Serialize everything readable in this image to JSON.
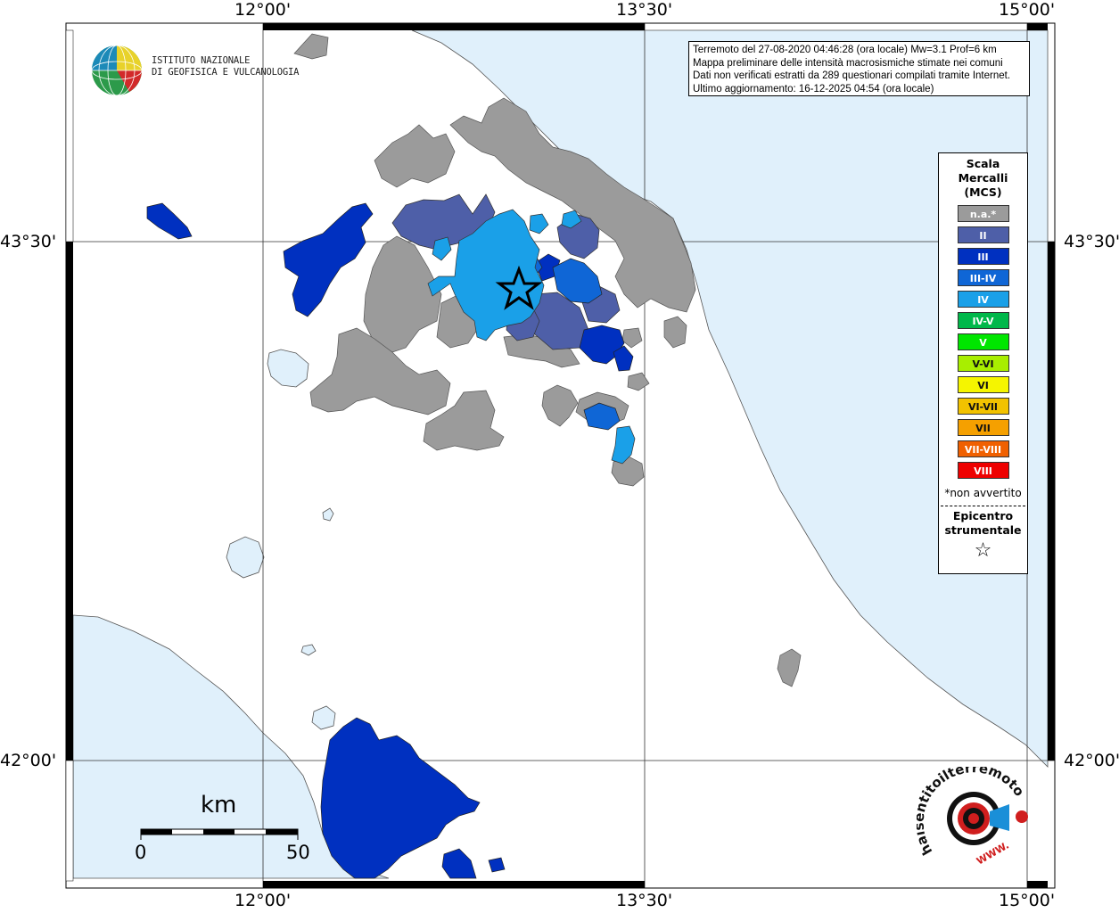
{
  "logo": {
    "line1": "ISTITUTO NAZIONALE",
    "line2": "DI GEOFISICA E VULCANOLOGIA"
  },
  "coordinates": {
    "lon_top": [
      "12°00'",
      "13°30'",
      "15°00'"
    ],
    "lon_bottom": [
      "12°00'",
      "13°30'",
      "15°00'"
    ],
    "lat_left": [
      "43°30'",
      "42°00'"
    ],
    "lat_right": [
      "43°30'",
      "42°00'"
    ]
  },
  "info": {
    "line1": "Terremoto del 27-08-2020 04:46:28 (ora locale) Mw=3.1 Prof=6 km",
    "line2": "Mappa preliminare delle intensità macrosismiche stimate nei comuni",
    "line3": "Dati non verificati estratti da 289 questionari compilati tramite Internet.",
    "line4": "Ultimo aggiornamento: 16-12-2025 04:54 (ora locale)"
  },
  "legend": {
    "title_line1": "Scala",
    "title_line2": "Mercalli",
    "title_line3": "(MCS)",
    "items": [
      {
        "label": "n.a.*",
        "color": "#9b9b9b"
      },
      {
        "label": "II",
        "color": "#4e5fa8"
      },
      {
        "label": "III",
        "color": "#0030c0"
      },
      {
        "label": "III-IV",
        "color": "#0f66d6"
      },
      {
        "label": "IV",
        "color": "#1aa0e8"
      },
      {
        "label": "IV-V",
        "color": "#00b84a"
      },
      {
        "label": "V",
        "color": "#00e600"
      },
      {
        "label": "V-VI",
        "color": "#a8ee00"
      },
      {
        "label": "VI",
        "color": "#f5f500"
      },
      {
        "label": "VI-VII",
        "color": "#f2c200"
      },
      {
        "label": "VII",
        "color": "#f5a000"
      },
      {
        "label": "VII-VIII",
        "color": "#f06000"
      },
      {
        "label": "VIII",
        "color": "#ee0000"
      }
    ],
    "note": "*non avvertito",
    "epicenter_line1": "Epicentro",
    "epicenter_line2": "strumentale"
  },
  "scale_bar": {
    "unit": "km",
    "start": "0",
    "end": "50"
  },
  "brand": {
    "text": "haisentitoilterremoto.it",
    "url": "WWW."
  },
  "colors": {
    "sea": "#e0f0fb",
    "land": "#ffffff",
    "na": "#9b9b9b",
    "ii": "#4e5fa8",
    "iii": "#0030c0",
    "iii_iv": "#0f66d6",
    "iv": "#1aa0e8"
  }
}
